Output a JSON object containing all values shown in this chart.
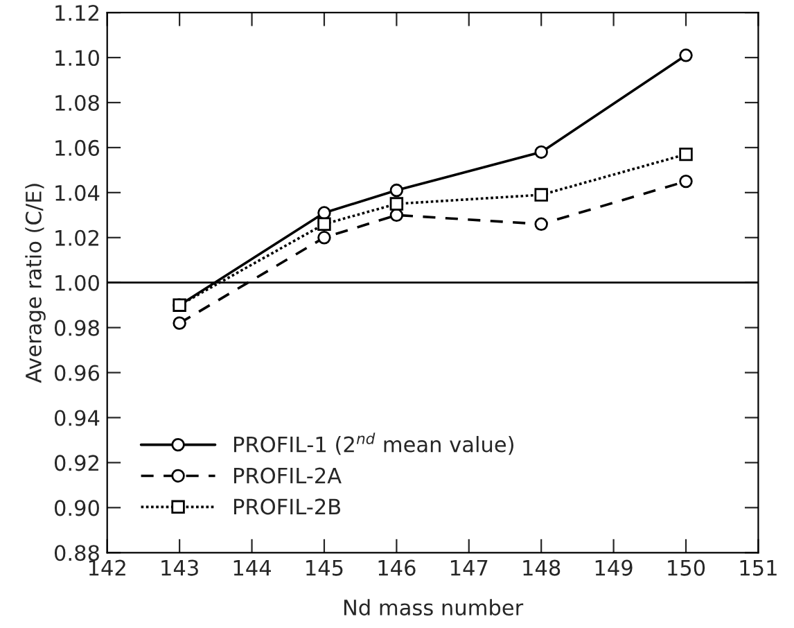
{
  "chart_data": {
    "type": "line",
    "xlabel": "Nd mass number",
    "ylabel": "Average ratio (C/E)",
    "x": [
      143,
      145,
      146,
      148,
      150
    ],
    "series": [
      {
        "name": "PROFIL-1 (2$^{nd}$ mean value)",
        "color": "#000000",
        "marker": "circle",
        "line_style": "solid",
        "values": [
          0.99,
          1.031,
          1.041,
          1.058,
          1.101
        ]
      },
      {
        "name": "PROFIL-2A",
        "color": "#000000",
        "marker": "circle",
        "line_style": "dashed",
        "values": [
          0.982,
          1.02,
          1.03,
          1.026,
          1.045
        ]
      },
      {
        "name": "PROFIL-2B",
        "color": "#000000",
        "marker": "square",
        "line_style": "dotted",
        "values": [
          0.99,
          1.026,
          1.035,
          1.039,
          1.057
        ]
      }
    ],
    "xlim": [
      142,
      151
    ],
    "xticks": [
      142,
      143,
      144,
      145,
      146,
      147,
      148,
      149,
      150,
      151
    ],
    "ylim": [
      0.88,
      1.12
    ],
    "yticks": [
      0.88,
      {
        "value": 0.9,
        "label": "0.90"
      },
      0.92,
      0.94,
      0.96,
      0.98,
      {
        "value": 1.0,
        "label": "1.00"
      },
      1.02,
      1.04,
      1.06,
      1.08,
      {
        "value": 1.1,
        "label": "1.10"
      },
      1.12
    ],
    "ref_lines": [
      {
        "axis": "y",
        "value": 1.0,
        "color": "#000000"
      }
    ],
    "legend": "bottom left",
    "grid": false
  }
}
